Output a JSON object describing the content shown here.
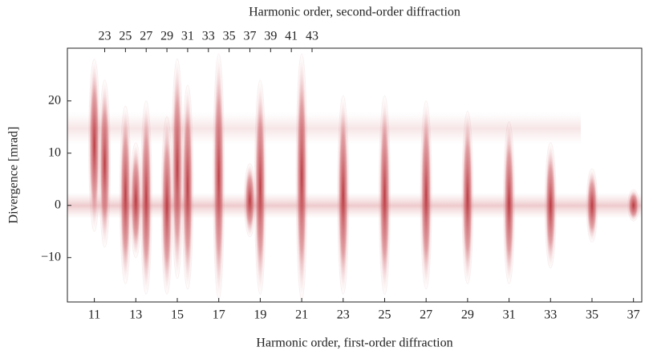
{
  "chart_data": {
    "type": "heatmap",
    "title": "Harmonic order, second-order diffraction",
    "xlabel": "Harmonic order, first-order diffraction",
    "ylabel": "Divergence [mrad]",
    "color": "#b8323a",
    "x": [
      11,
      11.5,
      12.5,
      13,
      13.5,
      14.5,
      15,
      15.5,
      17,
      18.5,
      19,
      21,
      23,
      25,
      27,
      29,
      31,
      33,
      35,
      37
    ],
    "y_high": [
      28,
      24,
      19,
      12,
      20,
      17,
      28,
      23,
      29,
      8,
      24,
      29,
      21,
      21,
      20,
      18,
      16,
      12,
      7,
      3
    ],
    "y_low": [
      -5,
      -8,
      -15,
      -10,
      -17,
      -17,
      -14,
      -16,
      -18,
      -6,
      -17,
      -18,
      -17,
      -17,
      -16,
      -15,
      -15,
      -12,
      -7,
      -3
    ],
    "xlim": [
      9.7,
      37.4
    ],
    "xticks": [
      11,
      13,
      15,
      17,
      19,
      21,
      23,
      25,
      27,
      29,
      31,
      33,
      35,
      37
    ],
    "x2lim": [
      19.4,
      74.8
    ],
    "x2ticks": [
      23,
      25,
      27,
      29,
      31,
      33,
      35,
      37,
      39,
      41,
      43
    ],
    "ylim": [
      -18.5,
      30.1
    ],
    "yticks": [
      {
        "value": -10,
        "label": "−10"
      },
      0,
      10,
      20
    ]
  }
}
